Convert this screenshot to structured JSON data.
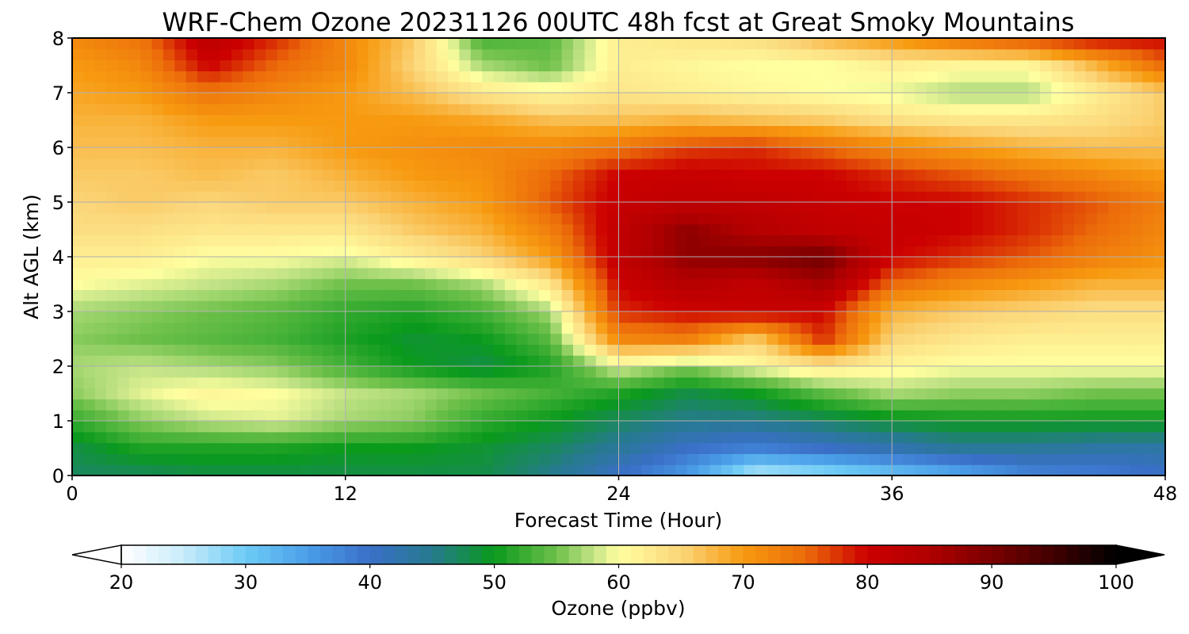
{
  "chart_data": {
    "type": "heatmap",
    "title": "WRF-Chem Ozone  20231126 00UTC 48h fcst at Great Smoky Mountains",
    "xlabel": "Forecast Time (Hour)",
    "ylabel": "Alt AGL (km)",
    "xlim": [
      0,
      48
    ],
    "ylim": [
      0,
      8
    ],
    "x_ticks": [
      0,
      12,
      24,
      36,
      48
    ],
    "y_ticks": [
      0,
      1,
      2,
      3,
      4,
      5,
      6,
      7,
      8
    ],
    "grid": true,
    "x": [
      0,
      3,
      6,
      9,
      12,
      15,
      18,
      21,
      24,
      27,
      30,
      33,
      36,
      39,
      42,
      45,
      48
    ],
    "y": [
      0,
      0.5,
      1,
      1.5,
      2,
      2.5,
      3,
      3.5,
      4,
      4.5,
      5,
      5.5,
      6,
      6.5,
      7,
      7.5,
      8
    ],
    "z": [
      [
        47,
        47,
        48,
        48,
        48,
        48,
        48,
        45,
        40,
        35,
        25,
        27,
        30,
        33,
        37,
        38,
        40
      ],
      [
        48,
        51,
        51,
        51,
        50,
        50,
        49,
        47,
        44,
        40,
        38,
        40,
        42,
        44,
        44,
        43,
        43
      ],
      [
        52,
        56,
        58,
        59,
        57,
        56,
        52,
        50,
        47,
        45,
        45,
        47,
        49,
        50,
        50,
        50,
        50
      ],
      [
        56,
        59,
        61,
        60,
        58,
        57,
        55,
        53,
        51,
        48,
        50,
        54,
        57,
        56,
        56,
        55,
        55
      ],
      [
        57,
        58,
        57,
        56,
        53,
        50,
        48,
        51,
        59,
        56,
        60,
        63,
        61,
        60,
        60,
        60,
        60
      ],
      [
        56,
        55,
        54,
        53,
        51,
        49,
        50,
        54,
        72,
        73,
        66,
        78,
        65,
        63,
        62,
        62,
        62
      ],
      [
        57,
        56,
        55,
        54,
        52,
        51,
        53,
        57,
        78,
        80,
        81,
        80,
        68,
        66,
        65,
        64,
        64
      ],
      [
        60,
        59,
        58,
        57,
        55,
        55,
        57,
        63,
        80,
        84,
        82,
        86,
        75,
        72,
        70,
        68,
        68
      ],
      [
        62,
        62,
        60,
        60,
        59,
        62,
        65,
        70,
        82,
        88,
        89,
        91,
        80,
        78,
        76,
        73,
        71
      ],
      [
        64,
        64,
        63,
        63,
        63,
        66,
        68,
        73,
        82,
        88,
        84,
        82,
        81,
        80,
        78,
        75,
        72
      ],
      [
        65,
        66,
        65,
        66,
        66,
        68,
        70,
        76,
        81,
        82,
        82,
        81,
        80,
        80,
        78,
        76,
        73
      ],
      [
        66,
        66,
        67,
        66,
        68,
        70,
        71,
        75,
        80,
        81,
        80,
        80,
        78,
        76,
        74,
        72,
        70
      ],
      [
        67,
        67,
        68,
        68,
        70,
        71,
        72,
        72,
        74,
        77,
        78,
        75,
        72,
        70,
        68,
        67,
        67
      ],
      [
        68,
        68,
        70,
        70,
        70,
        70,
        69,
        67,
        67,
        68,
        67,
        66,
        64,
        63,
        63,
        64,
        66
      ],
      [
        69,
        70,
        74,
        72,
        70,
        67,
        63,
        61,
        63,
        62,
        61,
        60,
        59,
        57,
        57,
        62,
        66
      ],
      [
        70,
        72,
        80,
        75,
        72,
        65,
        57,
        55,
        62,
        61,
        60,
        60,
        62,
        61,
        61,
        68,
        75
      ],
      [
        72,
        74,
        83,
        78,
        72,
        66,
        53,
        54,
        62,
        63,
        64,
        68,
        71,
        75,
        78,
        80,
        80
      ]
    ],
    "colorbar": {
      "label": "Ozone  (ppbv)",
      "min": 20,
      "max": 100,
      "ticks": [
        20,
        30,
        40,
        50,
        60,
        70,
        80,
        90,
        100
      ],
      "extend": "both",
      "stops": [
        {
          "v": 20,
          "c": "#ffffff"
        },
        {
          "v": 25,
          "c": "#c8ecfb"
        },
        {
          "v": 30,
          "c": "#6ecbf5"
        },
        {
          "v": 35,
          "c": "#4a9ee8"
        },
        {
          "v": 40,
          "c": "#3a6fc8"
        },
        {
          "v": 45,
          "c": "#267a8e"
        },
        {
          "v": 50,
          "c": "#0a9a1c"
        },
        {
          "v": 55,
          "c": "#6dc04a"
        },
        {
          "v": 58,
          "c": "#c4e487"
        },
        {
          "v": 60,
          "c": "#ffffa0"
        },
        {
          "v": 65,
          "c": "#fbd67a"
        },
        {
          "v": 70,
          "c": "#f79a10"
        },
        {
          "v": 75,
          "c": "#ec6c0a"
        },
        {
          "v": 80,
          "c": "#cc0000"
        },
        {
          "v": 85,
          "c": "#b00000"
        },
        {
          "v": 90,
          "c": "#7a0000"
        },
        {
          "v": 95,
          "c": "#400000"
        },
        {
          "v": 100,
          "c": "#000000"
        }
      ]
    }
  }
}
